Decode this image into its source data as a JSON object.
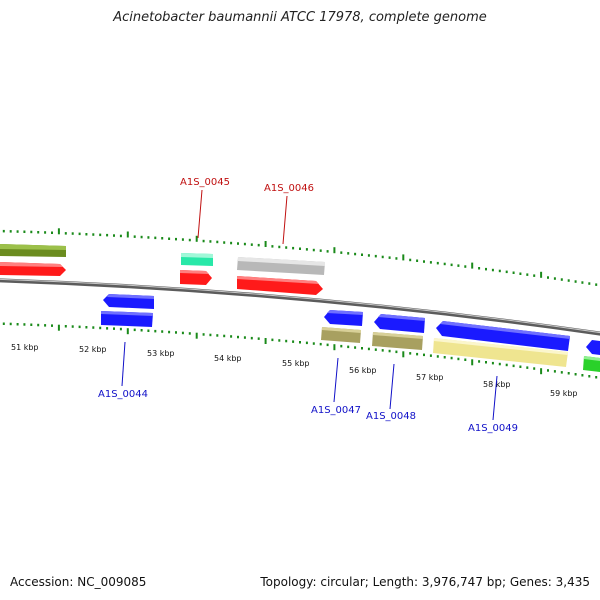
{
  "title": "Acinetobacter baumannii ATCC 17978, complete genome",
  "footer": {
    "accession": "Accession: NC_009085",
    "stats": "Topology: circular; Length: 3,976,747 bp; Genes: 3,435"
  },
  "ticks": [
    "51 kbp",
    "52 kbp",
    "53 kbp",
    "54 kbp",
    "55 kbp",
    "56 kbp",
    "57 kbp",
    "58 kbp",
    "59 kbp"
  ],
  "genes_labeled": [
    {
      "id": "A1S_0044",
      "color": "#1010c8"
    },
    {
      "id": "A1S_0045",
      "color": "#c01010"
    },
    {
      "id": "A1S_0046",
      "color": "#c01010"
    },
    {
      "id": "A1S_0047",
      "color": "#1010c8"
    },
    {
      "id": "A1S_0048",
      "color": "#1010c8"
    },
    {
      "id": "A1S_0049",
      "color": "#1010c8"
    }
  ],
  "colors": {
    "backbone": "#8a8a8a",
    "red": "#ff1a1a",
    "blue": "#1a1aff",
    "olive": "#6b8c1f",
    "khaki": "#b8b070",
    "paleyellow": "#f3eca0",
    "aqua": "#28e8a8",
    "grey": "#c8c8c8",
    "green": "#2ad12a",
    "tick": "#1a8a1a"
  }
}
